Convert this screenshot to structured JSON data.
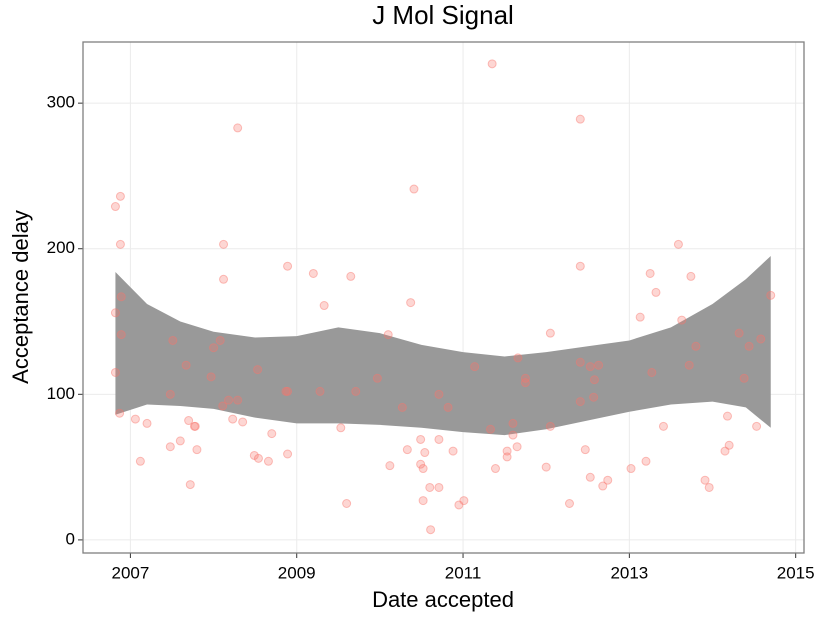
{
  "chart_data": {
    "type": "scatter",
    "title": "J Mol Signal",
    "x_label": "Date accepted",
    "y_label": "Acceptance delay",
    "x": [
      2006.82,
      2006.88,
      2006.88,
      2006.82,
      2006.89,
      2006.89,
      2006.82,
      2006.87,
      2007.06,
      2007.2,
      2007.12,
      2007.48,
      2007.48,
      2007.51,
      2007.6,
      2007.67,
      2007.7,
      2007.77,
      2007.78,
      2007.8,
      2007.72,
      2007.97,
      2008.0,
      2008.08,
      2008.12,
      2008.12,
      2008.11,
      2008.18,
      2008.23,
      2008.29,
      2008.29,
      2008.35,
      2008.49,
      2008.53,
      2008.54,
      2008.66,
      2008.7,
      2008.87,
      2008.89,
      2008.89,
      2008.89,
      2009.2,
      2009.28,
      2009.33,
      2009.53,
      2009.6,
      2009.65,
      2009.71,
      2009.97,
      2010.1,
      2010.12,
      2010.27,
      2010.37,
      2010.41,
      2010.33,
      2010.49,
      2010.49,
      2010.52,
      2010.54,
      2010.52,
      2010.6,
      2010.61,
      2010.71,
      2010.71,
      2010.71,
      2010.82,
      2010.88,
      2010.95,
      2011.01,
      2011.14,
      2011.33,
      2011.35,
      2011.39,
      2011.53,
      2011.53,
      2011.6,
      2011.6,
      2011.66,
      2011.65,
      2011.75,
      2011.75,
      2012.0,
      2012.05,
      2012.05,
      2012.28,
      2012.41,
      2012.41,
      2012.41,
      2012.41,
      2012.47,
      2012.53,
      2012.53,
      2012.58,
      2012.57,
      2012.63,
      2012.68,
      2012.74,
      2013.02,
      2013.13,
      2013.2,
      2013.25,
      2013.27,
      2013.32,
      2013.41,
      2013.59,
      2013.63,
      2013.72,
      2013.74,
      2013.8,
      2013.91,
      2013.96,
      2014.15,
      2014.18,
      2014.2,
      2014.32,
      2014.38,
      2014.44,
      2014.53,
      2014.58,
      2014.7
    ],
    "values": [
      229,
      236,
      203,
      156,
      167,
      141,
      115,
      87,
      83,
      80,
      54,
      64,
      100,
      137,
      68,
      120,
      82,
      78,
      78,
      62,
      38,
      112,
      132,
      137,
      203,
      179,
      92,
      96,
      83,
      283,
      96,
      81,
      58,
      117,
      56,
      54,
      73,
      102,
      102,
      188,
      59,
      183,
      102,
      161,
      77,
      25,
      181,
      102,
      111,
      141,
      51,
      91,
      163,
      241,
      62,
      52,
      69,
      27,
      60,
      49,
      36,
      7,
      100,
      36,
      69,
      91,
      61,
      24,
      27,
      119,
      76,
      327,
      49,
      61,
      57,
      72,
      80,
      125,
      64,
      111,
      108,
      50,
      142,
      78,
      25,
      289,
      188,
      122,
      95,
      62,
      119,
      43,
      110,
      98,
      120,
      37,
      41,
      49,
      153,
      54,
      183,
      115,
      170,
      78,
      203,
      151,
      120,
      181,
      133,
      41,
      36,
      61,
      85,
      65,
      142,
      111,
      133,
      78,
      138,
      168
    ],
    "color": "#f8766d",
    "band": {
      "x": [
        2006.82,
        2007.2,
        2007.6,
        2008.0,
        2008.5,
        2009.0,
        2009.5,
        2010.0,
        2010.5,
        2011.0,
        2011.5,
        2012.0,
        2012.5,
        2013.0,
        2013.5,
        2014.0,
        2014.4,
        2014.7
      ],
      "upper": [
        184,
        162,
        150,
        143,
        139,
        140,
        146,
        142,
        134,
        129,
        126,
        129,
        133,
        137,
        146,
        162,
        179,
        195
      ],
      "lower": [
        86,
        93,
        92,
        90,
        84,
        80,
        80,
        79,
        77,
        74,
        72,
        76,
        82,
        88,
        93,
        95,
        91,
        77
      ],
      "color": "#999999"
    },
    "xlim": [
      2006.43,
      2015.1
    ],
    "ylim": [
      -9,
      342
    ],
    "xticks": [
      2007,
      2009,
      2011,
      2013,
      2015
    ],
    "yticks": [
      0,
      100,
      200,
      300
    ],
    "grid": true
  }
}
